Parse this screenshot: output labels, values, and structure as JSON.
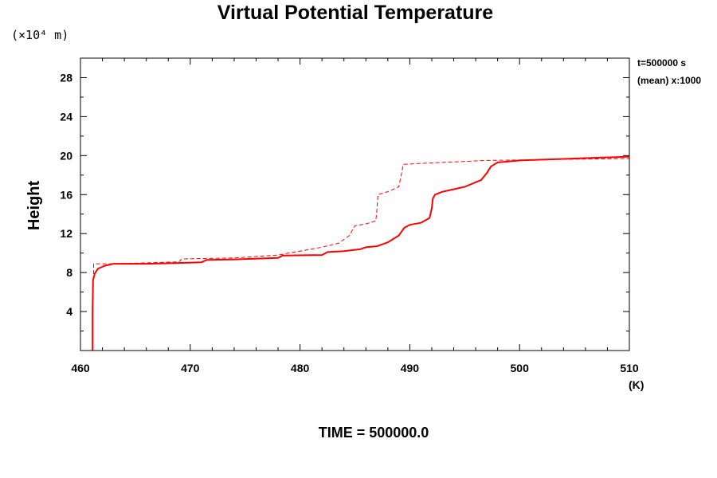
{
  "chart_data": {
    "type": "line",
    "title": "Virtual Potential Temperature",
    "ylabel": "Height",
    "y_units": "(×10⁴ m)",
    "x_units": "(K)",
    "xlim": [
      460,
      510
    ],
    "ylim": [
      0,
      30
    ],
    "x_ticks": [
      460,
      470,
      480,
      490,
      500,
      510
    ],
    "y_ticks": [
      4,
      8,
      12,
      16,
      20,
      24,
      28
    ],
    "x_tick_labels": [
      "460",
      "470",
      "480",
      "490",
      "500",
      "510"
    ],
    "y_tick_labels": [
      "4",
      "8",
      "12",
      "16",
      "20",
      "24",
      "28"
    ],
    "annotations": [
      "t=500000 s",
      "(mean) x:1000"
    ],
    "footer": "TIME = 500000.0",
    "grid": false,
    "series": [
      {
        "style": "solid",
        "color": "#ff0000",
        "points": [
          [
            461.1,
            0.0
          ],
          [
            461.1,
            4.0
          ],
          [
            461.15,
            7.2
          ],
          [
            461.3,
            7.9
          ],
          [
            461.6,
            8.4
          ],
          [
            462.2,
            8.7
          ],
          [
            463.0,
            8.9
          ],
          [
            466.0,
            8.9
          ],
          [
            468.0,
            8.95
          ],
          [
            471.0,
            9.05
          ],
          [
            471.5,
            9.3
          ],
          [
            474.0,
            9.35
          ],
          [
            478.0,
            9.5
          ],
          [
            478.4,
            9.75
          ],
          [
            482.0,
            9.8
          ],
          [
            482.5,
            10.1
          ],
          [
            484.0,
            10.2
          ],
          [
            485.5,
            10.4
          ],
          [
            486.0,
            10.6
          ],
          [
            487.0,
            10.7
          ],
          [
            488.0,
            11.1
          ],
          [
            489.0,
            11.8
          ],
          [
            489.5,
            12.6
          ],
          [
            490.0,
            12.9
          ],
          [
            491.0,
            13.1
          ],
          [
            491.8,
            13.6
          ],
          [
            492.0,
            14.6
          ],
          [
            492.1,
            15.6
          ],
          [
            492.3,
            16.0
          ],
          [
            493.0,
            16.3
          ],
          [
            495.0,
            16.8
          ],
          [
            496.5,
            17.5
          ],
          [
            497.0,
            18.2
          ],
          [
            497.4,
            18.9
          ],
          [
            498.0,
            19.3
          ],
          [
            500.0,
            19.5
          ],
          [
            505.0,
            19.7
          ],
          [
            510.0,
            19.9
          ]
        ]
      },
      {
        "style": "dashed",
        "color": "#ff0000",
        "points": [
          [
            461.1,
            0.0
          ],
          [
            461.1,
            4.0
          ],
          [
            461.2,
            8.2
          ],
          [
            461.2,
            8.9
          ],
          [
            463.0,
            8.9
          ],
          [
            469.0,
            9.1
          ],
          [
            469.2,
            9.4
          ],
          [
            474.0,
            9.5
          ],
          [
            478.0,
            9.8
          ],
          [
            480.0,
            10.2
          ],
          [
            482.0,
            10.6
          ],
          [
            483.5,
            11.0
          ],
          [
            484.5,
            11.8
          ],
          [
            485.0,
            12.8
          ],
          [
            486.0,
            13.0
          ],
          [
            486.9,
            13.3
          ],
          [
            487.0,
            14.4
          ],
          [
            487.1,
            16.0
          ],
          [
            488.0,
            16.3
          ],
          [
            489.0,
            16.8
          ],
          [
            489.3,
            18.5
          ],
          [
            489.4,
            19.1
          ],
          [
            491.0,
            19.2
          ],
          [
            497.0,
            19.5
          ],
          [
            503.0,
            19.6
          ],
          [
            510.0,
            19.7
          ]
        ]
      }
    ]
  }
}
